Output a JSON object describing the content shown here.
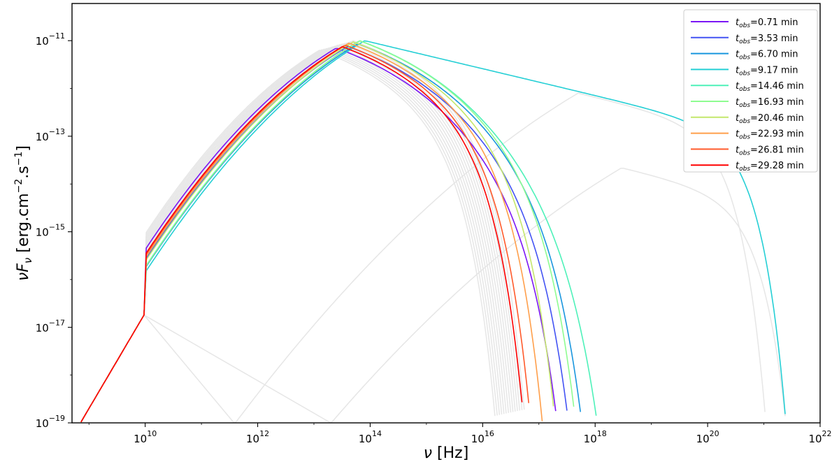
{
  "chart_data": {
    "type": "line",
    "x_scale": "log",
    "y_scale": "log",
    "xlim": [
      500000000.0,
      1e+22
    ],
    "ylim": [
      1e-19,
      6e-11
    ],
    "xlabel_sym": "ν",
    "xlabel_unit": "[Hz]",
    "ylabel_sym": "νF",
    "ylabel_sub": "ν",
    "ylabel_unit_pre": "[erg.cm",
    "ylabel_sup1": "−2",
    "ylabel_unit_mid": ".s",
    "ylabel_sup2": "−1",
    "ylabel_unit_post": "]",
    "x_ticks": [
      {
        "value": 10000000000.0,
        "base": "10",
        "exp": "10"
      },
      {
        "value": 1000000000000.0,
        "base": "10",
        "exp": "12"
      },
      {
        "value": 100000000000000.0,
        "base": "10",
        "exp": "14"
      },
      {
        "value": 1e+16,
        "base": "10",
        "exp": "16"
      },
      {
        "value": 1e+18,
        "base": "10",
        "exp": "18"
      },
      {
        "value": 1e+20,
        "base": "10",
        "exp": "20"
      },
      {
        "value": 1e+22,
        "base": "10",
        "exp": "22"
      }
    ],
    "y_ticks": [
      {
        "value": 1e-11,
        "base": "10",
        "exp": "−11"
      },
      {
        "value": 1e-13,
        "base": "10",
        "exp": "−13"
      },
      {
        "value": 1e-15,
        "base": "10",
        "exp": "−15"
      },
      {
        "value": 1e-17,
        "base": "10",
        "exp": "−17"
      },
      {
        "value": 1e-19,
        "base": "10",
        "exp": "−19"
      }
    ],
    "legend": {
      "placement": "top-right",
      "var_main": "t",
      "var_sub": "obs",
      "unit": "min"
    },
    "grey_color": "#e6e6e6",
    "series": [
      {
        "name": "0.71",
        "color": "#7b16f5",
        "peak_x": 25000000000000.0,
        "peak_y": 7e-12,
        "cut": 1.6e+17
      },
      {
        "name": "3.53",
        "color": "#4353f3",
        "peak_x": 40000000000000.0,
        "peak_y": 7.6e-12,
        "cut": 2.5e+17
      },
      {
        "name": "6.70",
        "color": "#1996de",
        "peak_x": 60000000000000.0,
        "peak_y": 8.6e-12,
        "cut": 4.5e+17
      },
      {
        "name": "9.17",
        "color": "#25cfd5",
        "peak_x": 80000000000000.0,
        "peak_y": 1e-11,
        "cut": 4.6e+20,
        "tail": 1
      },
      {
        "name": "14.46",
        "color": "#4ef1b9",
        "peak_x": 65000000000000.0,
        "peak_y": 1e-11,
        "cut": 1.1e+18
      },
      {
        "name": "16.93",
        "color": "#8ffc91",
        "peak_x": 65000000000000.0,
        "peak_y": 9.9e-12,
        "cut": 3e+17
      },
      {
        "name": "20.46",
        "color": "#c4e76b",
        "peak_x": 50000000000000.0,
        "peak_y": 9.4e-12,
        "cut": 1.1e+17
      },
      {
        "name": "22.93",
        "color": "#ff9f4b",
        "peak_x": 42000000000000.0,
        "peak_y": 8.9e-12,
        "cut": 6e+16
      },
      {
        "name": "26.81",
        "color": "#ff5a2b",
        "peak_x": 36000000000000.0,
        "peak_y": 8.1e-12,
        "cut": 3.5e+16
      },
      {
        "name": "29.28",
        "color": "#ff0000",
        "peak_x": 32000000000000.0,
        "peak_y": 7.5e-12,
        "cut": 2.6e+16
      }
    ]
  }
}
